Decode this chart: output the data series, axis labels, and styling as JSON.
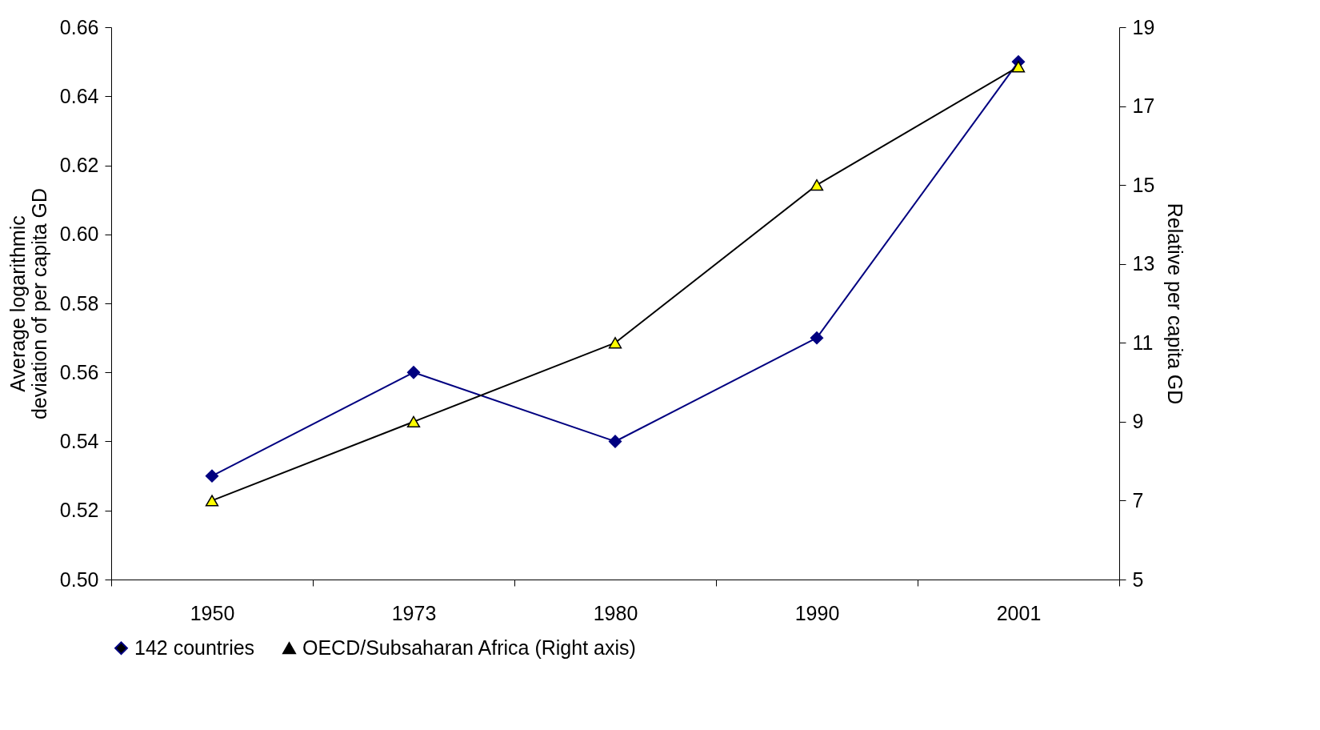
{
  "chart_data": {
    "type": "line",
    "categories": [
      "1950",
      "1973",
      "1980",
      "1990",
      "2001"
    ],
    "ylabel": "Average logarithmic deviation of per capita GD",
    "y2label": "Relative per capita GD",
    "ylim": [
      0.5,
      0.66
    ],
    "yticks": [
      {
        "value": 0.5,
        "label": "0.50"
      },
      0.52,
      0.54,
      0.56,
      0.58,
      {
        "value": 0.6,
        "label": "0.60"
      },
      0.62,
      0.64,
      0.66
    ],
    "y2lim": [
      5,
      19
    ],
    "y2ticks": [
      5,
      7,
      9,
      11,
      13,
      15,
      17,
      19
    ],
    "grid": false,
    "legend": "bottom",
    "line_style": "solid",
    "series": [
      {
        "name": "142 countries",
        "color": "#000080",
        "marker": "diamond",
        "values": [
          0.53,
          0.56,
          0.54,
          0.57,
          0.65
        ]
      },
      {
        "name": "OECD/Subsaharan Africa (Right axis)",
        "color": "#000000",
        "colors": [
          "#ffff00",
          "#ffff00",
          "#ffff00",
          "#ffff00",
          "#ffff00"
        ],
        "marker": "triangle",
        "axis": "y2",
        "values": [
          7,
          9,
          11,
          15,
          18
        ]
      }
    ]
  }
}
